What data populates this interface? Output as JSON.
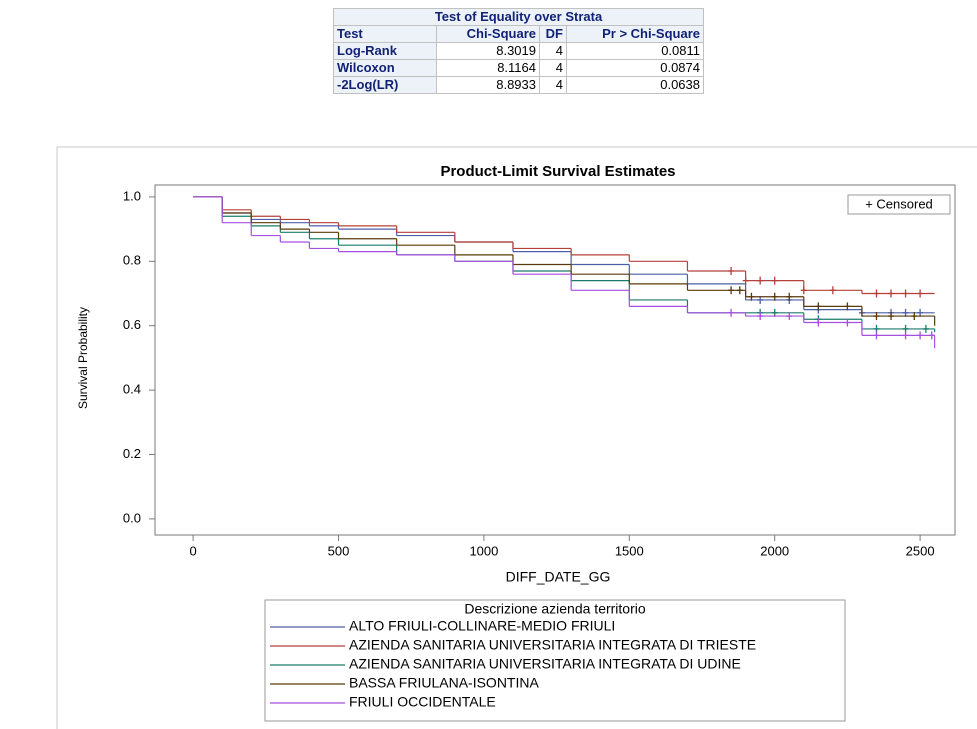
{
  "table": {
    "title": "Test of Equality over Strata",
    "columns": [
      "Test",
      "Chi-Square",
      "DF",
      "Pr > Chi-Square"
    ],
    "rows": [
      [
        "Log-Rank",
        "8.3019",
        "4",
        "0.0811"
      ],
      [
        "Wilcoxon",
        "8.1164",
        "4",
        "0.0874"
      ],
      [
        "-2Log(LR)",
        "8.8933",
        "4",
        "0.0638"
      ]
    ]
  },
  "chart_data": {
    "type": "line",
    "title": "Product-Limit Survival Estimates",
    "x_label": "DIFF_DATE_GG",
    "y_label": "Survival Probability",
    "legend_title": "Descrizione azienda territorio",
    "censored_label": "+ Censored",
    "x": [
      0,
      100,
      200,
      300,
      400,
      500,
      700,
      900,
      1100,
      1300,
      1500,
      1700,
      1900,
      2100,
      2300,
      2550
    ],
    "series": [
      {
        "name": "ALTO FRIULI-COLLINARE-MEDIO FRIULI",
        "color": "#4d5fa8",
        "values": [
          1.0,
          0.95,
          0.93,
          0.92,
          0.91,
          0.9,
          0.88,
          0.86,
          0.83,
          0.79,
          0.76,
          0.73,
          0.68,
          0.65,
          0.64,
          0.64
        ],
        "censored_x": [
          1950,
          2050,
          2150,
          2300,
          2400,
          2450,
          2500
        ]
      },
      {
        "name": "AZIENDA SANITARIA UNIVERSITARIA INTEGRATA DI TRIESTE",
        "color": "#b5403a",
        "values": [
          1.0,
          0.96,
          0.94,
          0.93,
          0.92,
          0.91,
          0.89,
          0.86,
          0.84,
          0.82,
          0.8,
          0.77,
          0.74,
          0.71,
          0.7,
          0.7
        ],
        "censored_x": [
          1850,
          1900,
          1950,
          2000,
          2100,
          2200,
          2350,
          2400,
          2450,
          2500
        ]
      },
      {
        "name": "AZIENDA SANITARIA UNIVERSITARIA INTEGRATA DI UDINE",
        "color": "#1b7b6b",
        "values": [
          1.0,
          0.94,
          0.91,
          0.89,
          0.87,
          0.85,
          0.82,
          0.8,
          0.77,
          0.74,
          0.68,
          0.64,
          0.64,
          0.62,
          0.59,
          0.58
        ],
        "censored_x": [
          1950,
          2000,
          2150,
          2350,
          2450,
          2520
        ]
      },
      {
        "name": "BASSA FRIULANA-ISONTINA",
        "color": "#5a3a0a",
        "values": [
          1.0,
          0.95,
          0.92,
          0.9,
          0.89,
          0.87,
          0.85,
          0.82,
          0.79,
          0.76,
          0.73,
          0.71,
          0.69,
          0.66,
          0.63,
          0.6
        ],
        "censored_x": [
          1850,
          1880,
          1920,
          2000,
          2050,
          2150,
          2250,
          2350,
          2400,
          2480
        ]
      },
      {
        "name": "FRIULI OCCIDENTALE",
        "color": "#a64fe0",
        "values": [
          1.0,
          0.92,
          0.88,
          0.86,
          0.84,
          0.83,
          0.82,
          0.8,
          0.76,
          0.71,
          0.66,
          0.64,
          0.63,
          0.61,
          0.57,
          0.53
        ],
        "censored_x": [
          1850,
          1950,
          2050,
          2150,
          2250,
          2350,
          2450,
          2500,
          2540
        ]
      }
    ],
    "xlim": [
      -131,
      2620
    ],
    "ylim": [
      -0.05,
      1.037
    ],
    "xticks": [
      0,
      500,
      1000,
      1500,
      2000,
      2500
    ],
    "yticks": [
      {
        "value": 0,
        "label": "0.0"
      },
      {
        "value": 0.2,
        "label": "0.2"
      },
      {
        "value": 0.4,
        "label": "0.4"
      },
      {
        "value": 0.6,
        "label": "0.6"
      },
      {
        "value": 0.8,
        "label": "0.8"
      },
      {
        "value": 1,
        "label": "1.0"
      }
    ],
    "grid": false,
    "legend": "bottom"
  }
}
